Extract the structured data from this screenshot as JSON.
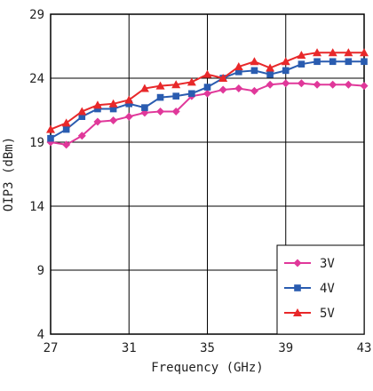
{
  "chart_data": {
    "type": "line",
    "xlabel": "Frequency (GHz)",
    "ylabel": "OIP3 (dBm)",
    "xlim": [
      27,
      43
    ],
    "ylim": [
      4,
      29
    ],
    "xticks": [
      27,
      31,
      35,
      39,
      43
    ],
    "yticks": [
      4,
      9,
      14,
      19,
      24,
      29
    ],
    "grid": true,
    "legend_position": "bottom-right",
    "x": [
      27,
      27.8,
      28.6,
      29.4,
      30.2,
      31,
      31.8,
      32.6,
      33.4,
      34.2,
      35,
      35.8,
      36.6,
      37.4,
      38.2,
      39,
      39.8,
      40.6,
      41.4,
      42.2,
      43
    ],
    "series": [
      {
        "name": "3V",
        "color": "#e0389a",
        "marker": "diamond",
        "values": [
          19.0,
          18.8,
          19.5,
          20.6,
          20.7,
          21.0,
          21.3,
          21.4,
          21.4,
          22.6,
          22.8,
          23.1,
          23.2,
          23.0,
          23.5,
          23.6,
          23.6,
          23.5,
          23.5,
          23.5,
          23.4
        ]
      },
      {
        "name": "4V",
        "color": "#2a5cb0",
        "marker": "square",
        "values": [
          19.3,
          20.0,
          21.0,
          21.6,
          21.6,
          22.0,
          21.7,
          22.5,
          22.6,
          22.8,
          23.3,
          24.0,
          24.5,
          24.6,
          24.3,
          24.6,
          25.1,
          25.3,
          25.3,
          25.3,
          25.3
        ]
      },
      {
        "name": "5V",
        "color": "#e8282a",
        "marker": "triangle",
        "values": [
          20.0,
          20.5,
          21.4,
          21.9,
          22.0,
          22.3,
          23.2,
          23.4,
          23.5,
          23.7,
          24.3,
          24.0,
          24.9,
          25.3,
          24.8,
          25.3,
          25.8,
          26.0,
          26.0,
          26.0,
          26.0
        ]
      }
    ]
  }
}
